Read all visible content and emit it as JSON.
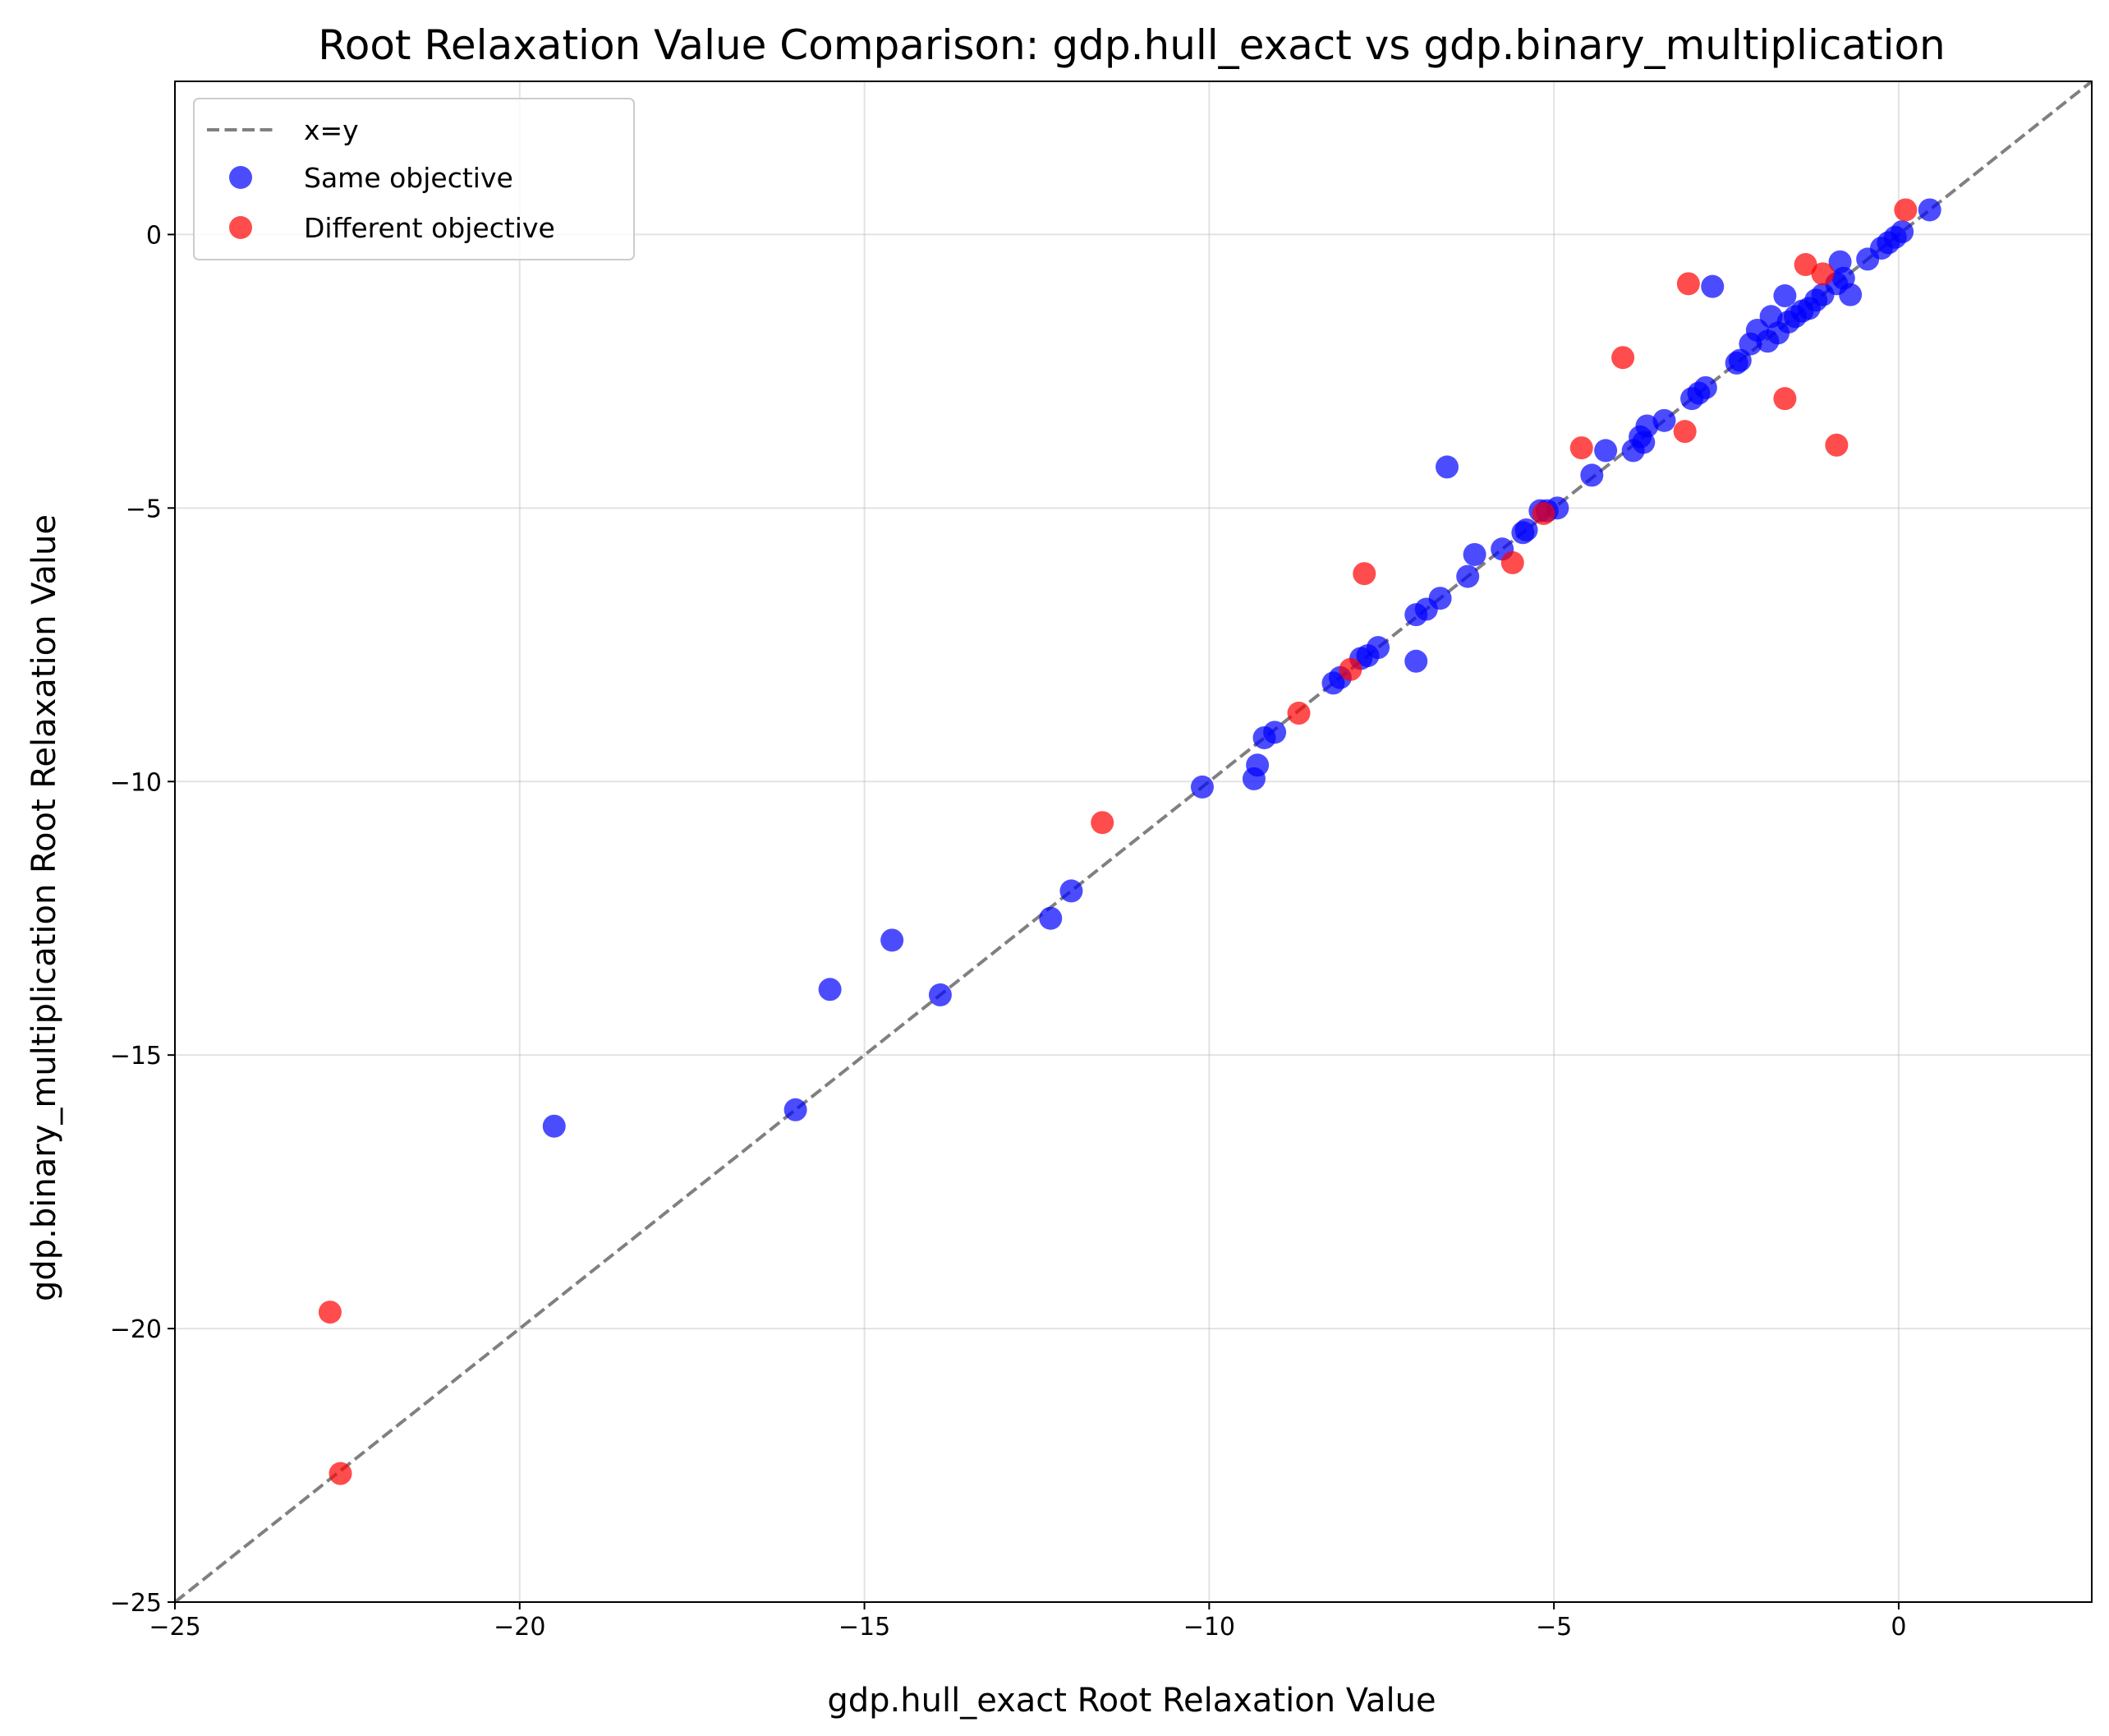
{
  "chart_data": {
    "type": "scatter",
    "title": "Root Relaxation Value Comparison: gdp.hull_exact vs gdp.binary_multiplication",
    "xlabel": "gdp.hull_exact Root Relaxation Value",
    "ylabel": "gdp.binary_multiplication Root Relaxation Value",
    "xlim": [
      -25,
      2.8
    ],
    "ylim": [
      -25,
      2.8
    ],
    "xticks": [
      -25,
      -20,
      -15,
      -10,
      -5,
      0
    ],
    "yticks": [
      -25,
      -20,
      -15,
      -10,
      -5,
      0
    ],
    "xtick_labels": [
      "−25",
      "−20",
      "−15",
      "−10",
      "−5",
      "0"
    ],
    "ytick_labels": [
      "−25",
      "−20",
      "−15",
      "−10",
      "−5",
      "0"
    ],
    "grid": true,
    "legend_position": "upper-left",
    "reference_line": {
      "name": "x=y",
      "color": "#808080",
      "style": "dashed"
    },
    "series": [
      {
        "name": "Same objective",
        "color": "#0000ff",
        "points": [
          [
            -19.5,
            -16.3
          ],
          [
            -16.0,
            -16.0
          ],
          [
            -15.5,
            -13.8
          ],
          [
            -14.6,
            -12.9
          ],
          [
            -13.9,
            -13.9
          ],
          [
            -12.3,
            -12.5
          ],
          [
            -12.0,
            -12.0
          ],
          [
            -10.1,
            -10.1
          ],
          [
            -9.35,
            -9.95
          ],
          [
            -9.3,
            -9.7
          ],
          [
            -9.2,
            -9.2
          ],
          [
            -9.05,
            -9.1
          ],
          [
            -8.2,
            -8.2
          ],
          [
            -8.1,
            -8.1
          ],
          [
            -7.8,
            -7.75
          ],
          [
            -7.7,
            -7.7
          ],
          [
            -7.55,
            -7.55
          ],
          [
            -7.0,
            -7.8
          ],
          [
            -7.0,
            -6.95
          ],
          [
            -6.85,
            -6.85
          ],
          [
            -6.65,
            -6.65
          ],
          [
            -6.55,
            -4.25
          ],
          [
            -6.25,
            -6.25
          ],
          [
            -6.15,
            -5.85
          ],
          [
            -5.75,
            -5.75
          ],
          [
            -5.45,
            -5.45
          ],
          [
            -5.4,
            -5.4
          ],
          [
            -5.2,
            -5.05
          ],
          [
            -5.1,
            -5.05
          ],
          [
            -4.95,
            -5.0
          ],
          [
            -4.45,
            -4.4
          ],
          [
            -4.25,
            -3.95
          ],
          [
            -3.85,
            -3.95
          ],
          [
            -3.75,
            -3.7
          ],
          [
            -3.7,
            -3.8
          ],
          [
            -3.65,
            -3.5
          ],
          [
            -3.4,
            -3.4
          ],
          [
            -3.0,
            -3.0
          ],
          [
            -2.9,
            -2.9
          ],
          [
            -2.8,
            -2.8
          ],
          [
            -2.7,
            -0.95
          ],
          [
            -2.35,
            -2.35
          ],
          [
            -2.3,
            -2.3
          ],
          [
            -2.15,
            -2.0
          ],
          [
            -2.05,
            -1.75
          ],
          [
            -1.9,
            -1.95
          ],
          [
            -1.85,
            -1.5
          ],
          [
            -1.75,
            -1.8
          ],
          [
            -1.65,
            -1.12
          ],
          [
            -1.6,
            -1.6
          ],
          [
            -1.5,
            -1.5
          ],
          [
            -1.4,
            -1.4
          ],
          [
            -1.3,
            -1.35
          ],
          [
            -1.2,
            -1.2
          ],
          [
            -1.1,
            -1.1
          ],
          [
            -0.9,
            -0.9
          ],
          [
            -0.85,
            -0.5
          ],
          [
            -0.8,
            -0.8
          ],
          [
            -0.7,
            -1.1
          ],
          [
            -0.45,
            -0.45
          ],
          [
            -0.25,
            -0.25
          ],
          [
            -0.15,
            -0.15
          ],
          [
            -0.05,
            -0.05
          ],
          [
            0.05,
            0.05
          ],
          [
            0.45,
            0.45
          ]
        ]
      },
      {
        "name": "Different objective",
        "color": "#ff0000",
        "points": [
          [
            -22.75,
            -19.7
          ],
          [
            -22.6,
            -22.65
          ],
          [
            -11.55,
            -10.75
          ],
          [
            -8.7,
            -8.75
          ],
          [
            -7.95,
            -7.95
          ],
          [
            -7.75,
            -6.2
          ],
          [
            -5.6,
            -6.0
          ],
          [
            -5.15,
            -5.1
          ],
          [
            -4.6,
            -3.9
          ],
          [
            -4.0,
            -2.25
          ],
          [
            -3.1,
            -3.6
          ],
          [
            -3.05,
            -0.9
          ],
          [
            -1.65,
            -3.0
          ],
          [
            -1.35,
            -0.55
          ],
          [
            -1.1,
            -0.72
          ],
          [
            -0.9,
            -3.85
          ],
          [
            0.1,
            0.45
          ]
        ]
      }
    ]
  }
}
